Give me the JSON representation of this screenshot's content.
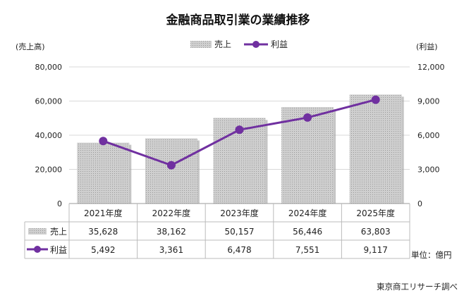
{
  "title": "金融商品取引業の業績推移",
  "left_axis_title": "(売上高)",
  "right_axis_title": "(利益)",
  "legend": {
    "bar_label": "売上",
    "line_label": "利益"
  },
  "unit_note": "単位：億円",
  "source_note": "東京商工リサーチ調べ",
  "colors": {
    "bar": "#c8c8c8",
    "line": "#7030a0",
    "grid": "#d9d9d9"
  },
  "chart_data": {
    "type": "bar",
    "categories": [
      "2021年度",
      "2022年度",
      "2023年度",
      "2024年度",
      "2025年度"
    ],
    "series": [
      {
        "name": "売上",
        "type": "bar",
        "axis": "left",
        "values": [
          35628,
          38162,
          50157,
          56446,
          63803
        ]
      },
      {
        "name": "利益",
        "type": "line",
        "axis": "right",
        "values": [
          5492,
          3361,
          6478,
          7551,
          9117
        ]
      }
    ],
    "left_axis": {
      "range": [
        0,
        80000
      ],
      "ticks": [
        "0",
        "20,000",
        "40,000",
        "60,000",
        "80,000"
      ]
    },
    "right_axis": {
      "range": [
        0,
        12000
      ],
      "ticks": [
        "0",
        "3,000",
        "6,000",
        "9,000",
        "12,000"
      ]
    },
    "table": {
      "rows": [
        {
          "label": "売上",
          "values": [
            "35,628",
            "38,162",
            "50,157",
            "56,446",
            "63,803"
          ]
        },
        {
          "label": "利益",
          "values": [
            "5,492",
            "3,361",
            "6,478",
            "7,551",
            "9,117"
          ]
        }
      ]
    },
    "grid": true,
    "legend_position": "top-center"
  }
}
